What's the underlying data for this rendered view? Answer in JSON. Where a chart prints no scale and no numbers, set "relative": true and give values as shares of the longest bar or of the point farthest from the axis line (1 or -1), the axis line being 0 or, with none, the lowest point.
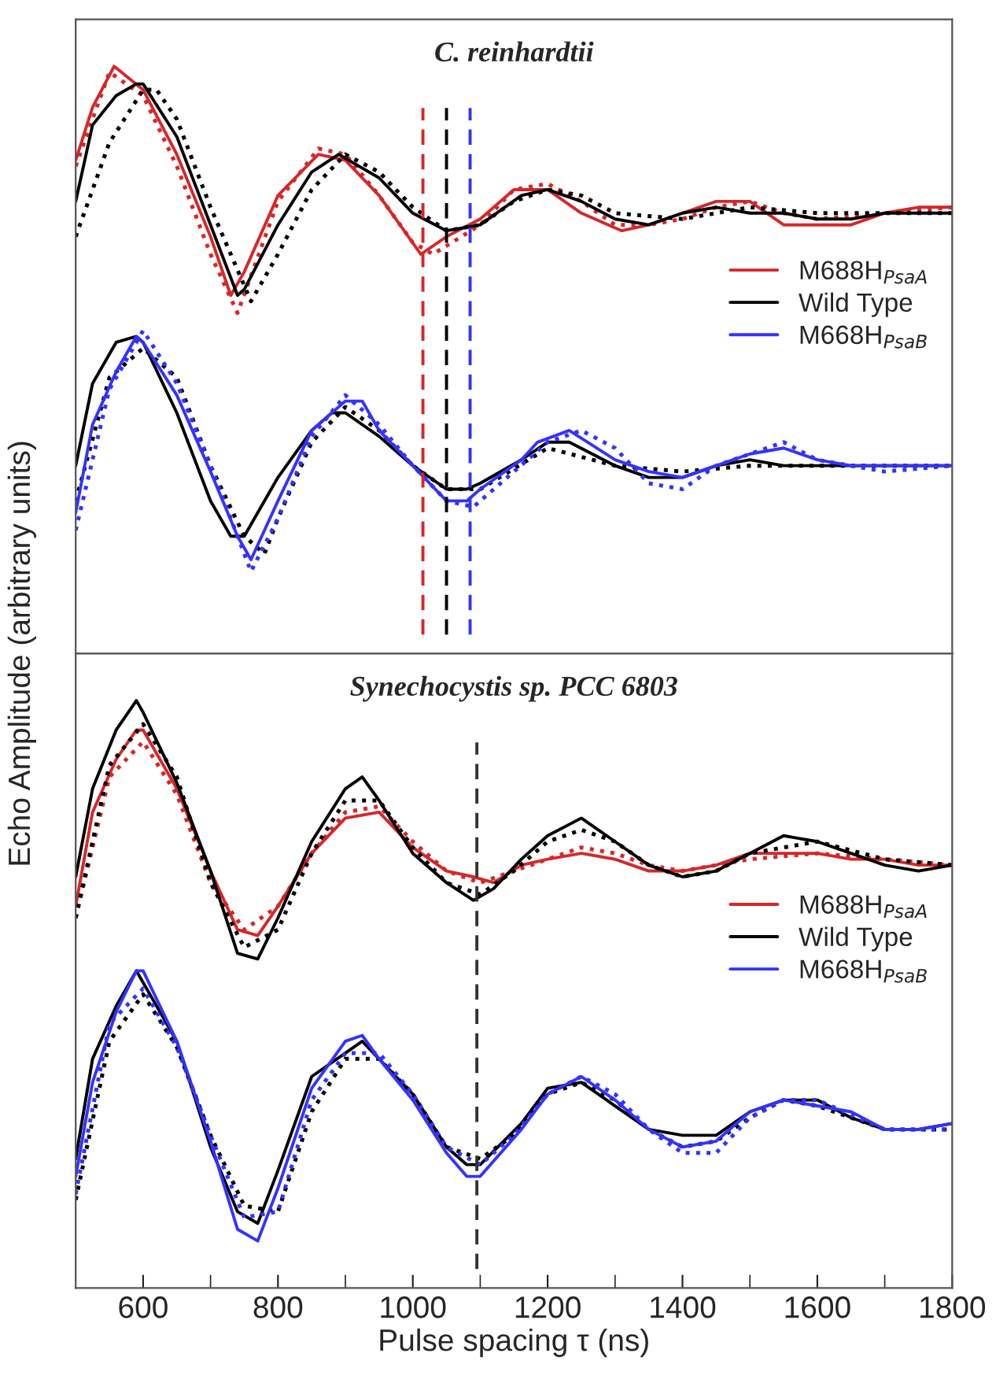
{
  "chart_data": [
    {
      "type": "line",
      "title": "C. reinhardtii",
      "ylabel": "Echo Amplitude (arbitrary units)",
      "relative": true,
      "xlim": [
        500,
        1800
      ],
      "tick_labels": false,
      "legend": "right",
      "grid": false,
      "ref_lines": [
        {
          "axis": "x",
          "value": 1015,
          "color": "#d62728",
          "line_style": "dashed"
        },
        {
          "axis": "x",
          "value": 1050,
          "color": "#000000",
          "line_style": "dashed"
        },
        {
          "axis": "x",
          "value": 1085,
          "color": "#3333ff",
          "line_style": "dashed"
        }
      ],
      "series": [
        {
          "name": "M688H$_{PsaA}$",
          "color": "#d62728",
          "line_style": "solid",
          "x": [
            500,
            525,
            557,
            600,
            650,
            700,
            730,
            750,
            800,
            860,
            900,
            950,
            1012,
            1050,
            1100,
            1150,
            1200,
            1250,
            1290,
            1310,
            1350,
            1400,
            1450,
            1500,
            1550,
            1600,
            1650,
            1700,
            1750,
            1800
          ],
          "values": [
            0.84,
            0.93,
            1.0,
            0.96,
            0.85,
            0.71,
            0.61,
            0.65,
            0.78,
            0.85,
            0.84,
            0.78,
            0.68,
            0.71,
            0.74,
            0.79,
            0.79,
            0.75,
            0.73,
            0.72,
            0.73,
            0.75,
            0.77,
            0.77,
            0.73,
            0.73,
            0.73,
            0.75,
            0.76,
            0.76
          ]
        },
        {
          "color": "#d62728",
          "line_style": "dotted",
          "x": [
            500,
            550,
            600,
            650,
            700,
            740,
            800,
            860,
            900,
            950,
            1000,
            1030,
            1100,
            1150,
            1200,
            1250,
            1300,
            1350,
            1400,
            1450,
            1500,
            1550,
            1600,
            1700,
            1800
          ],
          "values": [
            0.83,
            0.99,
            0.95,
            0.83,
            0.68,
            0.58,
            0.77,
            0.86,
            0.85,
            0.78,
            0.7,
            0.68,
            0.73,
            0.79,
            0.8,
            0.77,
            0.73,
            0.73,
            0.74,
            0.76,
            0.77,
            0.75,
            0.74,
            0.75,
            0.76
          ]
        },
        {
          "name": "Wild Type",
          "color": "#000000",
          "line_style": "solid",
          "x": [
            500,
            525,
            560,
            590,
            600,
            650,
            700,
            740,
            750,
            800,
            850,
            890,
            950,
            1000,
            1050,
            1100,
            1161,
            1200,
            1250,
            1300,
            1350,
            1400,
            1450,
            1500,
            1550,
            1600,
            1650,
            1700,
            1750,
            1800
          ],
          "values": [
            0.77,
            0.9,
            0.95,
            0.97,
            0.97,
            0.88,
            0.73,
            0.61,
            0.62,
            0.73,
            0.82,
            0.85,
            0.81,
            0.75,
            0.72,
            0.73,
            0.78,
            0.79,
            0.77,
            0.74,
            0.73,
            0.75,
            0.76,
            0.75,
            0.75,
            0.74,
            0.74,
            0.75,
            0.75,
            0.75
          ]
        },
        {
          "color": "#000000",
          "line_style": "dotted",
          "x": [
            500,
            550,
            600,
            620,
            650,
            700,
            760,
            800,
            850,
            900,
            950,
            1000,
            1050,
            1100,
            1150,
            1200,
            1250,
            1300,
            1400,
            1500,
            1600,
            1700,
            1800
          ],
          "values": [
            0.71,
            0.87,
            0.96,
            0.96,
            0.91,
            0.76,
            0.6,
            0.68,
            0.79,
            0.85,
            0.82,
            0.76,
            0.72,
            0.73,
            0.77,
            0.79,
            0.78,
            0.75,
            0.74,
            0.76,
            0.75,
            0.75,
            0.75
          ]
        },
        {
          "color": "#000000",
          "line_style": "solid",
          "x": [
            500,
            525,
            560,
            590,
            600,
            650,
            700,
            730,
            750,
            800,
            850,
            880,
            900,
            950,
            1000,
            1050,
            1080,
            1100,
            1161,
            1200,
            1232,
            1300,
            1350,
            1400,
            1450,
            1500,
            1550,
            1600,
            1650,
            1700,
            1750,
            1800
          ],
          "values": [
            0.32,
            0.46,
            0.53,
            0.54,
            0.53,
            0.41,
            0.26,
            0.2,
            0.2,
            0.3,
            0.38,
            0.41,
            0.41,
            0.37,
            0.32,
            0.28,
            0.28,
            0.29,
            0.33,
            0.36,
            0.36,
            0.32,
            0.3,
            0.3,
            0.32,
            0.33,
            0.32,
            0.32,
            0.32,
            0.32,
            0.32,
            0.32
          ]
        },
        {
          "color": "#000000",
          "line_style": "dotted",
          "x": [
            500,
            550,
            600,
            650,
            700,
            750,
            780,
            800,
            850,
            900,
            950,
            1000,
            1050,
            1100,
            1200,
            1300,
            1400,
            1500,
            1600,
            1700,
            1800
          ],
          "values": [
            0.26,
            0.47,
            0.52,
            0.47,
            0.32,
            0.2,
            0.17,
            0.23,
            0.36,
            0.42,
            0.38,
            0.32,
            0.28,
            0.28,
            0.35,
            0.32,
            0.31,
            0.32,
            0.32,
            0.32,
            0.32
          ]
        },
        {
          "name": "M668H$_{PsaB}$",
          "color": "#3333ff",
          "line_style": "solid",
          "x": [
            500,
            525,
            560,
            590,
            600,
            650,
            700,
            740,
            760,
            800,
            850,
            900,
            925,
            950,
            1000,
            1050,
            1080,
            1100,
            1161,
            1185,
            1232,
            1300,
            1350,
            1400,
            1450,
            1500,
            1550,
            1600,
            1650,
            1700,
            1750,
            1800
          ],
          "values": [
            0.24,
            0.39,
            0.48,
            0.54,
            0.53,
            0.44,
            0.31,
            0.2,
            0.16,
            0.26,
            0.38,
            0.43,
            0.43,
            0.38,
            0.32,
            0.26,
            0.26,
            0.28,
            0.33,
            0.36,
            0.38,
            0.33,
            0.31,
            0.3,
            0.32,
            0.34,
            0.35,
            0.33,
            0.32,
            0.32,
            0.32,
            0.32
          ]
        },
        {
          "color": "#3333ff",
          "line_style": "dotted",
          "x": [
            500,
            550,
            600,
            650,
            700,
            760,
            800,
            850,
            900,
            950,
            1000,
            1050,
            1090,
            1150,
            1200,
            1250,
            1300,
            1350,
            1400,
            1450,
            1500,
            1550,
            1600,
            1700,
            1800
          ],
          "values": [
            0.21,
            0.45,
            0.55,
            0.46,
            0.32,
            0.14,
            0.23,
            0.37,
            0.44,
            0.39,
            0.32,
            0.26,
            0.25,
            0.31,
            0.36,
            0.38,
            0.35,
            0.29,
            0.28,
            0.32,
            0.34,
            0.36,
            0.33,
            0.31,
            0.32
          ]
        }
      ]
    },
    {
      "type": "line",
      "title": "Synechocystis sp. PCC 6803",
      "xlabel": "Pulse spacing τ (ns)",
      "relative": true,
      "xlim": [
        500,
        1800
      ],
      "xticks": [
        600,
        {
          "value": 700,
          "label": null
        },
        800,
        {
          "value": 900,
          "label": null
        },
        1000,
        {
          "value": 1100,
          "label": null
        },
        1200,
        {
          "value": 1300,
          "label": null
        },
        1400,
        {
          "value": 1500,
          "label": null
        },
        1600,
        {
          "value": 1700,
          "label": null
        },
        1800
      ],
      "tick_labels": "x",
      "legend": "right",
      "grid": false,
      "ref_lines": [
        {
          "axis": "x",
          "value": 1095,
          "color": "#333333",
          "line_style": "dashed"
        }
      ],
      "series": [
        {
          "name": "M688H$_{PsaA}$",
          "color": "#d62728",
          "line_style": "solid",
          "x": [
            500,
            525,
            560,
            590,
            600,
            650,
            700,
            740,
            770,
            800,
            850,
            900,
            950,
            1000,
            1050,
            1090,
            1120,
            1161,
            1200,
            1250,
            1300,
            1350,
            1400,
            1450,
            1500,
            1550,
            1600,
            1650,
            1700,
            1750,
            1800
          ],
          "values": [
            0.65,
            0.81,
            0.9,
            0.95,
            0.95,
            0.85,
            0.71,
            0.61,
            0.6,
            0.65,
            0.74,
            0.8,
            0.81,
            0.75,
            0.71,
            0.7,
            0.69,
            0.72,
            0.73,
            0.74,
            0.73,
            0.71,
            0.71,
            0.72,
            0.74,
            0.74,
            0.74,
            0.73,
            0.73,
            0.72,
            0.72
          ]
        },
        {
          "color": "#d62728",
          "line_style": "dotted",
          "x": [
            500,
            550,
            600,
            650,
            700,
            750,
            800,
            850,
            900,
            950,
            1000,
            1050,
            1100,
            1150,
            1200,
            1250,
            1300,
            1350,
            1400,
            1450,
            1500,
            1600,
            1700,
            1800
          ],
          "values": [
            0.63,
            0.87,
            0.93,
            0.84,
            0.69,
            0.61,
            0.65,
            0.74,
            0.81,
            0.82,
            0.76,
            0.71,
            0.69,
            0.71,
            0.73,
            0.75,
            0.74,
            0.72,
            0.71,
            0.72,
            0.73,
            0.74,
            0.73,
            0.72
          ]
        },
        {
          "name": "Wild Type",
          "color": "#000000",
          "line_style": "solid",
          "x": [
            500,
            525,
            560,
            590,
            600,
            650,
            700,
            740,
            770,
            800,
            850,
            900,
            925,
            950,
            1000,
            1050,
            1090,
            1120,
            1161,
            1200,
            1250,
            1300,
            1350,
            1400,
            1450,
            1500,
            1550,
            1600,
            1650,
            1700,
            1750,
            1800
          ],
          "values": [
            0.7,
            0.85,
            0.95,
            1.0,
            0.98,
            0.86,
            0.71,
            0.57,
            0.56,
            0.63,
            0.76,
            0.85,
            0.87,
            0.83,
            0.74,
            0.69,
            0.66,
            0.68,
            0.73,
            0.77,
            0.8,
            0.76,
            0.72,
            0.7,
            0.71,
            0.74,
            0.77,
            0.76,
            0.74,
            0.72,
            0.71,
            0.72
          ]
        },
        {
          "color": "#000000",
          "line_style": "dotted",
          "x": [
            500,
            550,
            600,
            650,
            700,
            750,
            800,
            850,
            900,
            950,
            1000,
            1050,
            1100,
            1150,
            1200,
            1250,
            1300,
            1350,
            1400,
            1450,
            1500,
            1600,
            1700,
            1800
          ],
          "values": [
            0.63,
            0.89,
            0.96,
            0.87,
            0.69,
            0.58,
            0.61,
            0.74,
            0.83,
            0.83,
            0.75,
            0.69,
            0.67,
            0.71,
            0.76,
            0.78,
            0.76,
            0.72,
            0.7,
            0.71,
            0.74,
            0.76,
            0.73,
            0.72
          ]
        },
        {
          "color": "#000000",
          "line_style": "solid",
          "x": [
            500,
            525,
            560,
            590,
            600,
            650,
            700,
            740,
            770,
            800,
            850,
            900,
            925,
            950,
            1000,
            1050,
            1080,
            1100,
            1161,
            1200,
            1250,
            1300,
            1350,
            1400,
            1450,
            1500,
            1550,
            1600,
            1650,
            1700,
            1750,
            1800
          ],
          "values": [
            0.22,
            0.39,
            0.48,
            0.54,
            0.52,
            0.42,
            0.24,
            0.13,
            0.11,
            0.2,
            0.36,
            0.4,
            0.42,
            0.39,
            0.33,
            0.24,
            0.21,
            0.21,
            0.28,
            0.34,
            0.35,
            0.31,
            0.27,
            0.26,
            0.26,
            0.3,
            0.32,
            0.32,
            0.29,
            0.27,
            0.27,
            0.28
          ]
        },
        {
          "color": "#000000",
          "line_style": "dotted",
          "x": [
            500,
            550,
            600,
            650,
            700,
            750,
            800,
            850,
            900,
            950,
            1000,
            1050,
            1100,
            1150,
            1200,
            1250,
            1300,
            1350,
            1400,
            1450,
            1500,
            1550,
            1600,
            1700,
            1800
          ],
          "values": [
            0.15,
            0.42,
            0.5,
            0.41,
            0.26,
            0.14,
            0.13,
            0.3,
            0.39,
            0.39,
            0.33,
            0.24,
            0.22,
            0.26,
            0.33,
            0.35,
            0.32,
            0.27,
            0.24,
            0.25,
            0.29,
            0.32,
            0.31,
            0.27,
            0.27
          ]
        },
        {
          "name": "M668H$_{PsaB}$",
          "color": "#3333ff",
          "line_style": "solid",
          "x": [
            500,
            525,
            560,
            590,
            600,
            650,
            700,
            740,
            770,
            800,
            850,
            900,
            925,
            950,
            1000,
            1050,
            1080,
            1100,
            1161,
            1200,
            1250,
            1300,
            1350,
            1400,
            1450,
            1500,
            1550,
            1600,
            1650,
            1700,
            1750,
            1800
          ],
          "values": [
            0.19,
            0.35,
            0.47,
            0.54,
            0.54,
            0.42,
            0.25,
            0.1,
            0.08,
            0.17,
            0.34,
            0.42,
            0.43,
            0.39,
            0.32,
            0.23,
            0.19,
            0.19,
            0.27,
            0.33,
            0.36,
            0.32,
            0.27,
            0.24,
            0.25,
            0.3,
            0.32,
            0.31,
            0.3,
            0.27,
            0.27,
            0.28
          ]
        },
        {
          "color": "#3333ff",
          "line_style": "dotted",
          "x": [
            500,
            550,
            600,
            650,
            700,
            750,
            800,
            850,
            900,
            950,
            1000,
            1050,
            1100,
            1150,
            1200,
            1250,
            1300,
            1350,
            1400,
            1450,
            1500,
            1550,
            1600,
            1700,
            1800
          ],
          "values": [
            0.16,
            0.45,
            0.51,
            0.41,
            0.26,
            0.12,
            0.13,
            0.32,
            0.4,
            0.4,
            0.33,
            0.24,
            0.21,
            0.26,
            0.33,
            0.36,
            0.33,
            0.27,
            0.23,
            0.23,
            0.29,
            0.32,
            0.32,
            0.27,
            0.27
          ]
        }
      ]
    }
  ]
}
